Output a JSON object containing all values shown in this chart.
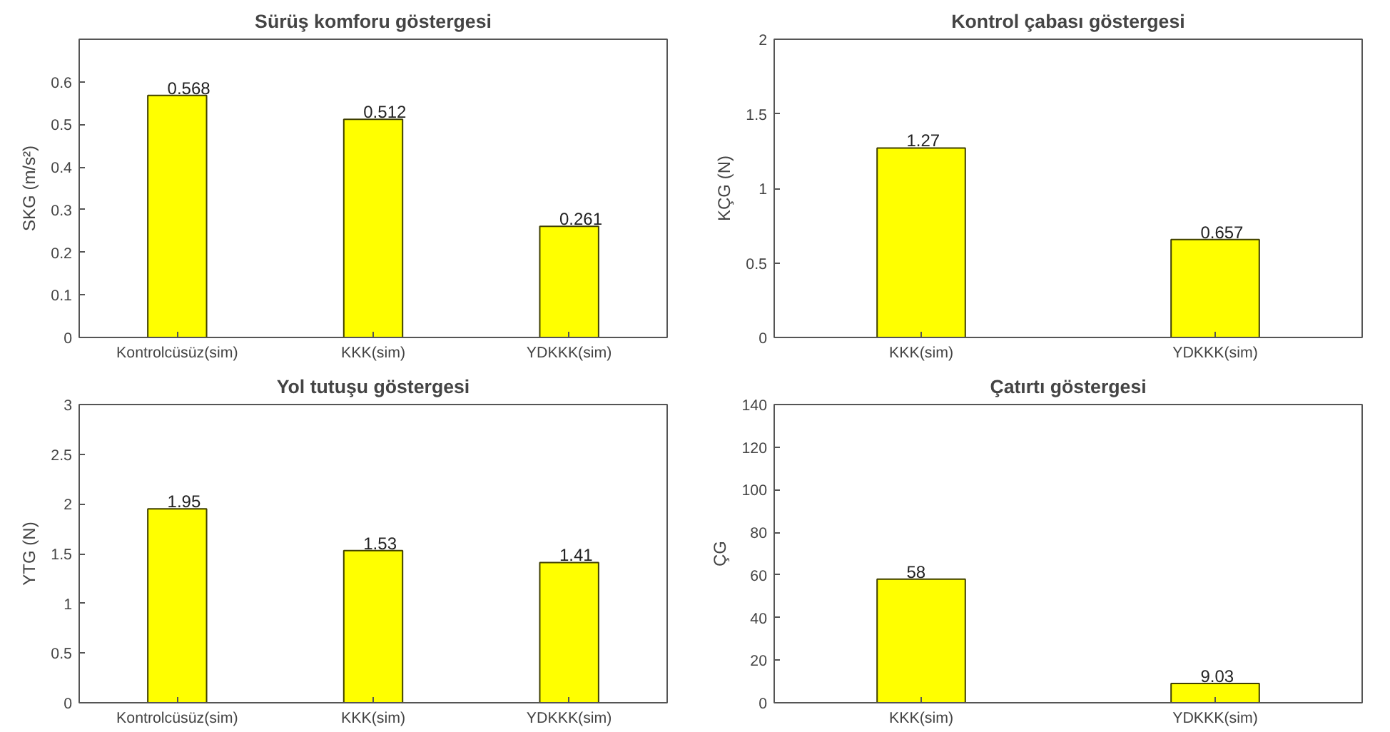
{
  "chart_data": [
    {
      "type": "bar",
      "title": "Sürüş komforu göstergesi",
      "ylabel": "SKG (m/s²)",
      "categories": [
        "Kontrolcüsüz(sim)",
        "KKK(sim)",
        "YDKKK(sim)"
      ],
      "values": [
        0.568,
        0.512,
        0.261
      ],
      "color": "#ffff00",
      "ylim": [
        0,
        0.7
      ],
      "yticks": [
        0,
        0.1,
        0.2,
        0.3,
        0.4,
        0.5,
        0.6
      ],
      "data_labels": true
    },
    {
      "type": "bar",
      "title": "Kontrol çabası göstergesi",
      "ylabel": "KÇG (N)",
      "categories": [
        "KKK(sim)",
        "YDKKK(sim)"
      ],
      "values": [
        1.27,
        0.657
      ],
      "color": "#ffff00",
      "ylim": [
        0,
        2
      ],
      "yticks": [
        0,
        0.5,
        1,
        1.5,
        2
      ],
      "data_labels": true
    },
    {
      "type": "bar",
      "title": "Yol tutuşu göstergesi",
      "ylabel": "YTG (N)",
      "categories": [
        "Kontrolcüsüz(sim)",
        "KKK(sim)",
        "YDKKK(sim)"
      ],
      "values": [
        1.95,
        1.53,
        1.41
      ],
      "color": "#ffff00",
      "ylim": [
        0,
        3
      ],
      "yticks": [
        0,
        0.5,
        1,
        1.5,
        2,
        2.5,
        3
      ],
      "data_labels": true
    },
    {
      "type": "bar",
      "title": "Çatırtı göstergesi",
      "ylabel": "ÇG",
      "categories": [
        "KKK(sim)",
        "YDKKK(sim)"
      ],
      "values": [
        58,
        9.03
      ],
      "color": "#ffff00",
      "ylim": [
        0,
        140
      ],
      "yticks": [
        0,
        20,
        40,
        60,
        80,
        100,
        120,
        140
      ],
      "data_labels": true
    }
  ]
}
